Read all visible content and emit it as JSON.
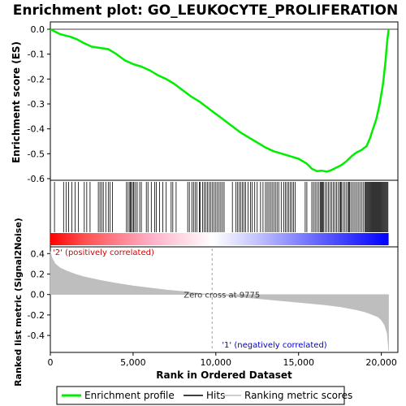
{
  "chart_data": {
    "type": "line",
    "title": "Enrichment plot: GO_LEUKOCYTE_PROLIFERATION",
    "es_panel": {
      "ylabel": "Enrichment score (ES)",
      "ylim": [
        -0.6,
        0.0
      ],
      "yticks": [
        "0.0",
        "-0.1",
        "-0.2",
        "-0.3",
        "-0.4",
        "-0.5",
        "-0.6"
      ],
      "ytick_values": [
        0.0,
        -0.1,
        -0.2,
        -0.3,
        -0.4,
        -0.5,
        -0.6
      ],
      "series": [
        {
          "name": "Enrichment profile",
          "color": "#00ee00",
          "x": [
            0,
            300,
            600,
            900,
            1200,
            1600,
            2000,
            2500,
            3000,
            3500,
            4000,
            4500,
            5000,
            5500,
            6000,
            6500,
            7000,
            7500,
            8000,
            8500,
            9000,
            9500,
            10000,
            10500,
            11000,
            11500,
            12000,
            12500,
            13000,
            13500,
            14000,
            14500,
            15000,
            15500,
            15800,
            16100,
            16400,
            16700,
            17000,
            17300,
            17600,
            17900,
            18200,
            18500,
            18800,
            19100,
            19300,
            19500,
            19700,
            19900,
            20100,
            20250,
            20350,
            20440
          ],
          "y": [
            0.0,
            -0.01,
            -0.02,
            -0.025,
            -0.03,
            -0.04,
            -0.055,
            -0.07,
            -0.075,
            -0.08,
            -0.1,
            -0.125,
            -0.14,
            -0.15,
            -0.165,
            -0.185,
            -0.2,
            -0.22,
            -0.245,
            -0.27,
            -0.29,
            -0.315,
            -0.34,
            -0.365,
            -0.39,
            -0.415,
            -0.435,
            -0.455,
            -0.475,
            -0.49,
            -0.5,
            -0.51,
            -0.52,
            -0.54,
            -0.56,
            -0.57,
            -0.568,
            -0.572,
            -0.565,
            -0.555,
            -0.545,
            -0.53,
            -0.51,
            -0.495,
            -0.485,
            -0.47,
            -0.44,
            -0.4,
            -0.36,
            -0.3,
            -0.22,
            -0.13,
            -0.05,
            0.0
          ]
        }
      ]
    },
    "hits_panel": {
      "name": "Hits",
      "hit_ranks": [
        250,
        800,
        950,
        1100,
        1300,
        1500,
        1700,
        2050,
        2200,
        2400,
        2900,
        3000,
        3100,
        3200,
        3350,
        3500,
        3600,
        3750,
        4600,
        4700,
        4800,
        4850,
        4900,
        5000,
        5050,
        5150,
        5250,
        5400,
        5500,
        5800,
        5900,
        6100,
        6300,
        6400,
        6600,
        6800,
        7000,
        7300,
        7400,
        7600,
        8300,
        8400,
        8550,
        8650,
        8750,
        8850,
        9000,
        9050,
        9200,
        9300,
        9400,
        9500,
        9600,
        9700,
        9800,
        9900,
        10000,
        10100,
        10200,
        10300,
        10400,
        10500,
        11000,
        11200,
        11300,
        11400,
        11500,
        11600,
        11700,
        11800,
        11950,
        12100,
        12200,
        12350,
        12500,
        12700,
        12850,
        13000,
        13100,
        13200,
        13300,
        13400,
        13500,
        13600,
        13700,
        13800,
        13950,
        14100,
        14200,
        14300,
        14400,
        14500,
        14600,
        14700,
        14800,
        15400,
        15500,
        15800,
        15900,
        16000,
        16100,
        16200,
        16300,
        16350,
        16400,
        16450,
        16500,
        16600,
        16700,
        16800,
        16900,
        17000,
        17100,
        17200,
        17300,
        17400,
        17500,
        17550,
        17600,
        17700,
        17800,
        17900,
        18000,
        18050,
        18100,
        18200,
        18300,
        18400,
        18500,
        18600,
        18700,
        18800,
        18900,
        19000,
        19050,
        19100,
        19150,
        19200,
        19250,
        19300,
        19350,
        19400,
        19450,
        19500,
        19550,
        19600,
        19650,
        19700,
        19750,
        19800,
        19850,
        19900,
        19950,
        20000,
        20050,
        20100,
        20150,
        20200,
        20250,
        20300,
        20350,
        20400
      ]
    },
    "rank_panel": {
      "ylabel": "Ranked list metric (Signal2Noise)",
      "xlabel": "Rank in Ordered Dataset",
      "ylim": [
        -0.55,
        0.45
      ],
      "yticks": [
        "0.4",
        "0.2",
        "0.0",
        "-0.2",
        "-0.4"
      ],
      "ytick_values": [
        0.4,
        0.2,
        0.0,
        -0.2,
        -0.4
      ],
      "series": [
        {
          "name": "Ranking metric scores",
          "color": "#bebebe",
          "x": [
            0,
            100,
            300,
            600,
            1000,
            1500,
            2000,
            3000,
            4000,
            5000,
            6000,
            7000,
            8000,
            9000,
            9775,
            10500,
            11500,
            12500,
            13500,
            14500,
            15500,
            16500,
            17500,
            18500,
            19000,
            19500,
            19800,
            20000,
            20200,
            20350,
            20440
          ],
          "y": [
            0.42,
            0.36,
            0.3,
            0.26,
            0.23,
            0.2,
            0.175,
            0.14,
            0.11,
            0.085,
            0.065,
            0.045,
            0.03,
            0.012,
            0.0,
            -0.01,
            -0.025,
            -0.04,
            -0.055,
            -0.07,
            -0.085,
            -0.1,
            -0.12,
            -0.15,
            -0.17,
            -0.2,
            -0.22,
            -0.25,
            -0.3,
            -0.38,
            -0.55
          ]
        }
      ],
      "zero_cross_label": "Zero cross at 9775",
      "zero_cross_rank": 9775,
      "pos_label": "'2' (positively correlated)",
      "neg_label": "'1' (negatively correlated)"
    },
    "xaxis": {
      "xlim": [
        0,
        21000
      ],
      "xticks": [
        "0",
        "5,000",
        "10,000",
        "15,000",
        "20,000"
      ],
      "xtick_values": [
        0,
        5000,
        10000,
        15000,
        20000
      ],
      "n_genes": 20440
    },
    "legend": {
      "placement": "bottom",
      "entries": [
        {
          "label": "Enrichment profile",
          "color": "#00ee00"
        },
        {
          "label": "Hits",
          "color": "#000000"
        },
        {
          "label": "Ranking metric scores",
          "color": "#bebebe"
        }
      ]
    },
    "colors": {
      "pos_label": "#d00000",
      "neg_label": "#0000d0",
      "bar_red": "#ff0000",
      "bar_blue": "#0000ff"
    }
  }
}
